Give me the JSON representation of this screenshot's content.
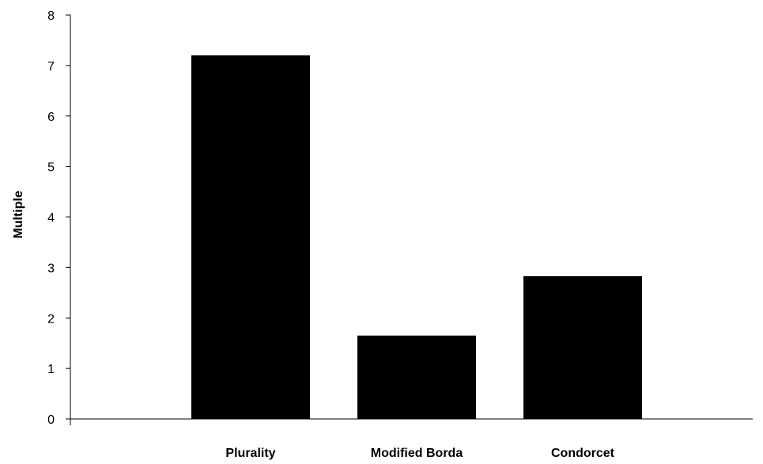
{
  "chart_data": {
    "type": "bar",
    "title": "",
    "xlabel": "",
    "ylabel": "Multiple",
    "categories": [
      "Plurality",
      "Modified Borda",
      "Condorcet"
    ],
    "values": [
      7.2,
      1.65,
      2.83
    ],
    "ylim": [
      0,
      8
    ],
    "yticks": [
      0,
      1,
      2,
      3,
      4,
      5,
      6,
      7,
      8
    ],
    "grid": false,
    "legend": "none",
    "bar_color": "#000000",
    "axis_color": "#000000"
  }
}
